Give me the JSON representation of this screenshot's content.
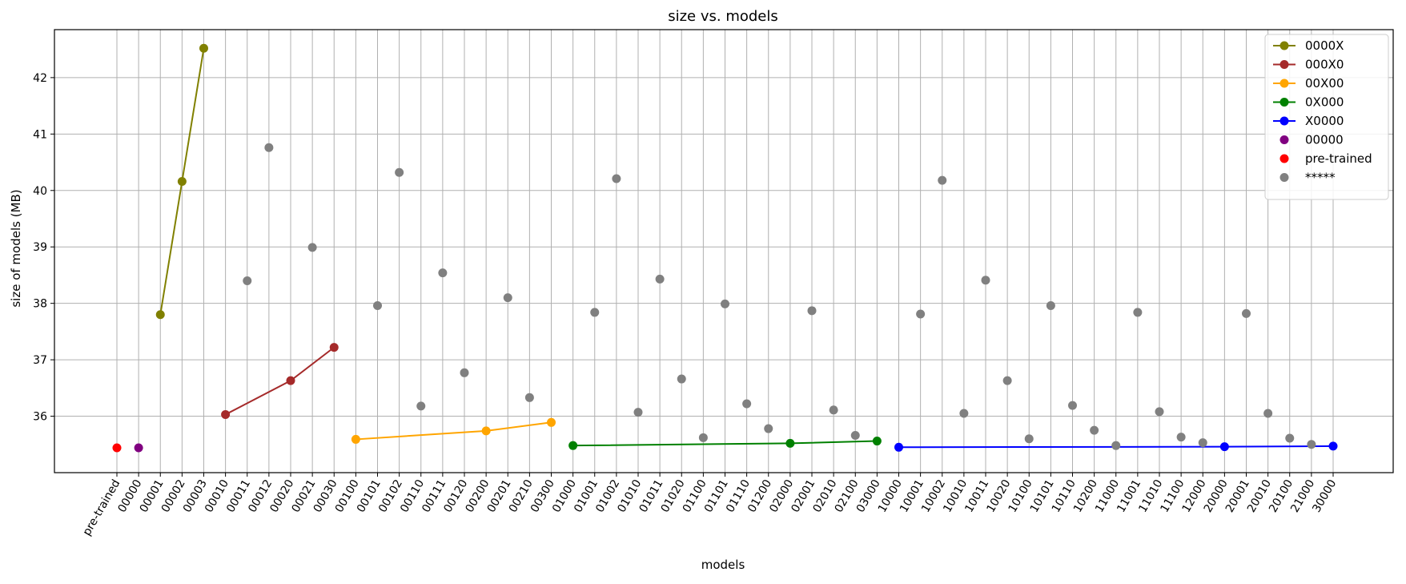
{
  "chart_data": {
    "type": "line",
    "title": "size vs. models",
    "xlabel": "models",
    "ylabel": "size of models (MB)",
    "ylim": [
      35.0,
      42.85
    ],
    "yticks": [
      36,
      37,
      38,
      39,
      40,
      41,
      42
    ],
    "grid": true,
    "legend_position": "top-right",
    "categories": [
      "pre-trained",
      "00000",
      "00001",
      "00002",
      "00003",
      "00010",
      "00011",
      "00012",
      "00020",
      "00021",
      "00030",
      "00100",
      "00101",
      "00102",
      "00110",
      "00111",
      "00120",
      "00200",
      "00201",
      "00210",
      "00300",
      "01000",
      "01001",
      "01002",
      "01010",
      "01011",
      "01020",
      "01100",
      "01101",
      "01110",
      "01200",
      "02000",
      "02001",
      "02010",
      "02100",
      "03000",
      "10000",
      "10001",
      "10002",
      "10010",
      "10011",
      "10020",
      "10100",
      "10101",
      "10110",
      "10200",
      "11000",
      "11001",
      "11010",
      "11100",
      "12000",
      "20000",
      "20001",
      "20010",
      "20100",
      "21000",
      "30000"
    ],
    "series": [
      {
        "name": "0000X",
        "color": "#808000",
        "line": true,
        "points": [
          [
            "00001",
            37.8
          ],
          [
            "00002",
            40.16
          ],
          [
            "00003",
            42.52
          ]
        ]
      },
      {
        "name": "000X0",
        "color": "#a52a2a",
        "line": true,
        "points": [
          [
            "00010",
            36.03
          ],
          [
            "00020",
            36.63
          ],
          [
            "00030",
            37.22
          ]
        ]
      },
      {
        "name": "00X00",
        "color": "#ffa500",
        "line": true,
        "points": [
          [
            "00100",
            35.59
          ],
          [
            "00200",
            35.74
          ],
          [
            "00300",
            35.89
          ]
        ]
      },
      {
        "name": "0X000",
        "color": "#008000",
        "line": true,
        "points": [
          [
            "01000",
            35.48
          ],
          [
            "02000",
            35.52
          ],
          [
            "03000",
            35.56
          ]
        ]
      },
      {
        "name": "X0000",
        "color": "#0000ff",
        "line": true,
        "points": [
          [
            "10000",
            35.45
          ],
          [
            "20000",
            35.46
          ],
          [
            "30000",
            35.47
          ]
        ]
      },
      {
        "name": "00000",
        "color": "#800080",
        "line": false,
        "points": [
          [
            "00000",
            35.44
          ]
        ]
      },
      {
        "name": "pre-trained",
        "color": "#ff0000",
        "line": false,
        "points": [
          [
            "pre-trained",
            35.44
          ]
        ]
      },
      {
        "name": "*****",
        "color": "#808080",
        "line": false,
        "points": [
          [
            "00011",
            38.4
          ],
          [
            "00012",
            40.76
          ],
          [
            "00021",
            38.99
          ],
          [
            "00101",
            37.96
          ],
          [
            "00102",
            40.32
          ],
          [
            "00110",
            36.18
          ],
          [
            "00111",
            38.54
          ],
          [
            "00120",
            36.77
          ],
          [
            "00201",
            38.1
          ],
          [
            "00210",
            36.33
          ],
          [
            "01001",
            37.84
          ],
          [
            "01002",
            40.21
          ],
          [
            "01010",
            36.07
          ],
          [
            "01011",
            38.43
          ],
          [
            "01020",
            36.66
          ],
          [
            "01100",
            35.62
          ],
          [
            "01101",
            37.99
          ],
          [
            "01110",
            36.22
          ],
          [
            "01200",
            35.78
          ],
          [
            "02001",
            37.87
          ],
          [
            "02010",
            36.11
          ],
          [
            "02100",
            35.66
          ],
          [
            "10001",
            37.81
          ],
          [
            "10002",
            40.18
          ],
          [
            "10010",
            36.05
          ],
          [
            "10011",
            38.41
          ],
          [
            "10020",
            36.63
          ],
          [
            "10100",
            35.6
          ],
          [
            "10101",
            37.96
          ],
          [
            "10110",
            36.19
          ],
          [
            "10200",
            35.75
          ],
          [
            "11000",
            35.48
          ],
          [
            "11001",
            37.84
          ],
          [
            "11010",
            36.08
          ],
          [
            "11100",
            35.63
          ],
          [
            "12000",
            35.53
          ],
          [
            "20001",
            37.82
          ],
          [
            "20010",
            36.05
          ],
          [
            "20100",
            35.61
          ],
          [
            "21000",
            35.5
          ]
        ]
      }
    ]
  }
}
